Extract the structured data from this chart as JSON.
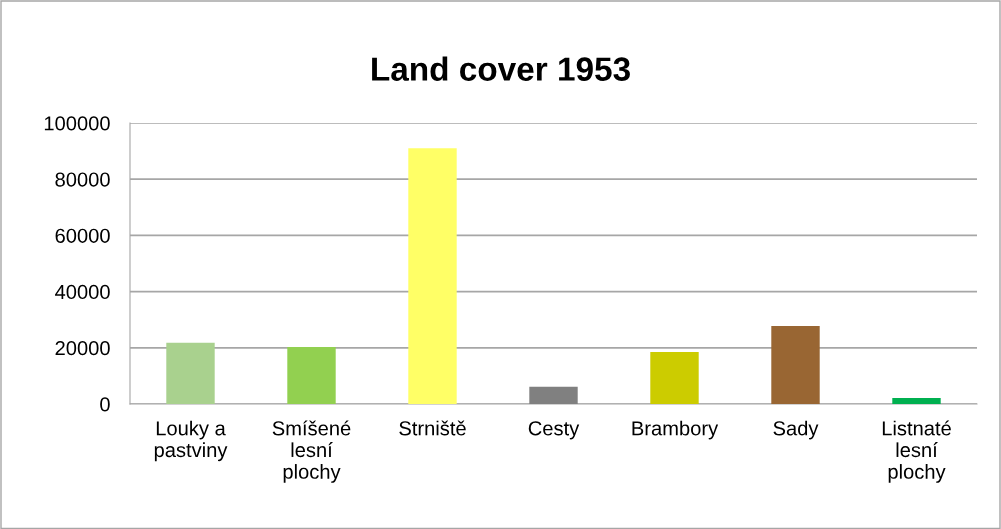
{
  "chart_data": {
    "type": "bar",
    "title": "Land cover 1953",
    "categories": [
      "Louky a\npastviny",
      "Smíšené\nlesní\nplochy",
      "Strniště",
      "Cesty",
      "Brambory",
      "Sady",
      "Listnaté\nlesní\nplochy"
    ],
    "values": [
      21800,
      20300,
      91000,
      6100,
      18500,
      27800,
      2100
    ],
    "colors": [
      "#a9d18e",
      "#92d050",
      "#ffff66",
      "#808080",
      "#cccc00",
      "#996633",
      "#00b050"
    ],
    "ylim": [
      0,
      100000
    ],
    "yticks": [
      0,
      20000,
      40000,
      60000,
      80000,
      100000
    ],
    "grid": "y",
    "legend": false
  }
}
